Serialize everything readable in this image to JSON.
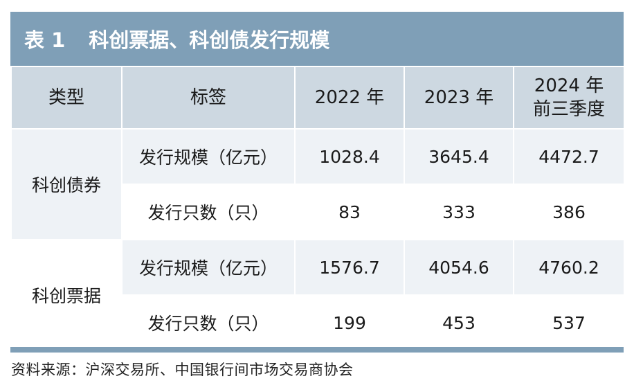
{
  "table": {
    "title_num": "表 1",
    "title_text": "科创票据、科创债发行规模",
    "headers": {
      "type": "类型",
      "label": "标签",
      "y2022": "2022 年",
      "y2023": "2023 年",
      "y2024_line1": "2024 年",
      "y2024_line2": "前三季度"
    },
    "groups": [
      {
        "type": "科创债券",
        "rows": [
          {
            "label": "发行规模（亿元）",
            "v2022": "1028.4",
            "v2023": "3645.4",
            "v2024": "4472.7"
          },
          {
            "label": "发行只数（只）",
            "v2022": "83",
            "v2023": "333",
            "v2024": "386"
          }
        ]
      },
      {
        "type": "科创票据",
        "rows": [
          {
            "label": "发行规模（亿元）",
            "v2022": "1576.7",
            "v2023": "4054.6",
            "v2024": "4760.2"
          },
          {
            "label": "发行只数（只）",
            "v2022": "199",
            "v2023": "453",
            "v2024": "537"
          }
        ]
      }
    ],
    "source": "资料来源：沪深交易所、中国银行间市场交易商协会"
  }
}
